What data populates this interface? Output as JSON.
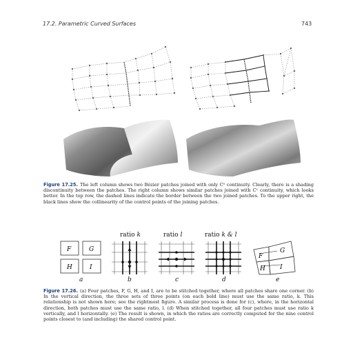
{
  "header": {
    "section_title": "17.2. Parametric Curved Surfaces",
    "page_number": "743"
  },
  "figure_1": {
    "label": "Figure 17.25.",
    "caption_text": "The left column shows two Bézier patches joined with only C⁰ continuity. Clearly, there is a shading discontinuity between the patches. The right column shows similar patches joined with C¹ continuity, which looks better. In the top row, the dashed lines indicate the border between the two joined patches. To the upper right, the black lines show the collinearity of the control points of the joining patches."
  },
  "figure_2": {
    "label": "Figure 17.26.",
    "caption_text": "(a) Four patches, F, G, H, and I, are to be stitched together, where all patches share one corner. (b) In the vertical direction, the three sets of three points (on each bold line) must use the same ratio, k. This relationship is not shown here; see the rightmost figure. A similar process is done for (c), where, in the horizontal direction, both patches must use the same ratio, l. (d) When stitched together, all four patches must use ratio k vertically, and l horizontally. (e) The result is shown, in which the ratios are correctly computed for the nine control points closest to (and including) the shared control point.",
    "ratio_labels": {
      "b_prefix": "ratio ",
      "b_var": "k",
      "c_prefix": "ratio ",
      "c_var": "l",
      "d_prefix": "ratio ",
      "d_var": "k & l"
    },
    "patch_letters": {
      "F": "F",
      "G": "G",
      "H": "H",
      "I": "I"
    },
    "sub_labels": {
      "a": "a",
      "b": "b",
      "c": "c",
      "d": "d",
      "e": "e"
    }
  }
}
